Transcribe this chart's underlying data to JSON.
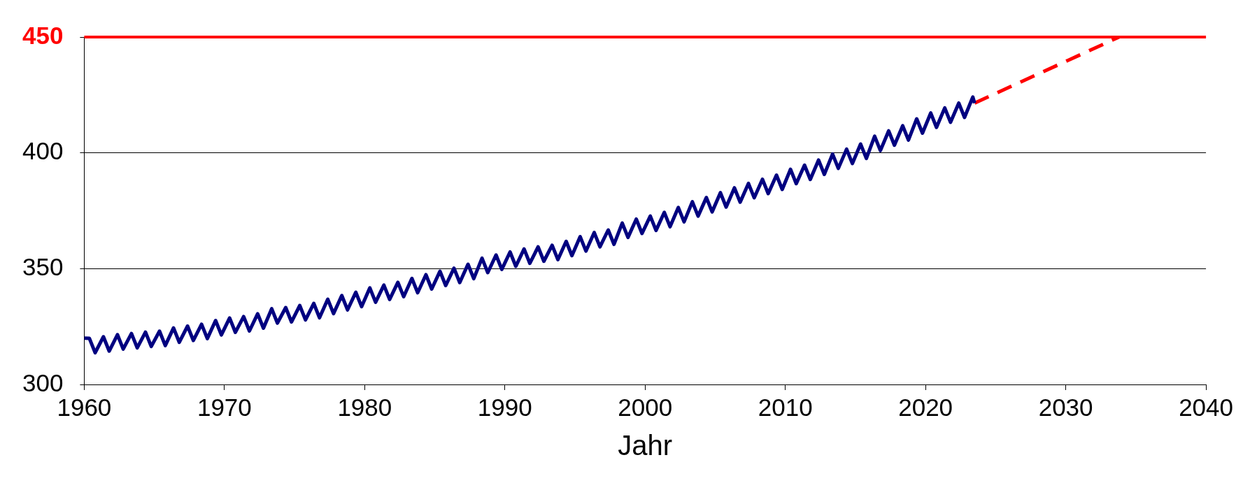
{
  "chart_data": {
    "type": "line",
    "xlabel": "Jahr",
    "xlim": [
      1960,
      2040
    ],
    "xticks": [
      1960,
      1970,
      1980,
      1990,
      2000,
      2010,
      2020,
      2030,
      2040
    ],
    "ylim": [
      300,
      450
    ],
    "yticks": [
      300,
      350,
      400,
      450
    ],
    "grid": "y",
    "legend": false,
    "marker": "none",
    "ref_lines": [
      {
        "axis": "y",
        "value": 450,
        "color": "#ff0000"
      }
    ],
    "series": [
      {
        "color": "#000080",
        "line_style": "solid",
        "x": [
          1960,
          1960.37,
          1960.78,
          1961.37,
          1961.78,
          1962.37,
          1962.78,
          1963.37,
          1963.78,
          1964.37,
          1964.78,
          1965.37,
          1965.78,
          1966.37,
          1966.78,
          1967.37,
          1967.78,
          1968.37,
          1968.78,
          1969.37,
          1969.78,
          1970.37,
          1970.78,
          1971.37,
          1971.78,
          1972.37,
          1972.78,
          1973.37,
          1973.78,
          1974.37,
          1974.78,
          1975.37,
          1975.78,
          1976.37,
          1976.78,
          1977.37,
          1977.78,
          1978.37,
          1978.78,
          1979.37,
          1979.78,
          1980.37,
          1980.78,
          1981.37,
          1981.78,
          1982.37,
          1982.78,
          1983.37,
          1983.78,
          1984.37,
          1984.78,
          1985.37,
          1985.78,
          1986.37,
          1986.78,
          1987.37,
          1987.78,
          1988.37,
          1988.78,
          1989.37,
          1989.78,
          1990.37,
          1990.78,
          1991.37,
          1991.78,
          1992.37,
          1992.78,
          1993.37,
          1993.78,
          1994.37,
          1994.78,
          1995.37,
          1995.78,
          1996.37,
          1996.78,
          1997.37,
          1997.78,
          1998.37,
          1998.78,
          1999.37,
          1999.78,
          2000.37,
          2000.78,
          2001.37,
          2001.78,
          2002.37,
          2002.78,
          2003.37,
          2003.78,
          2004.37,
          2004.78,
          2005.37,
          2005.78,
          2006.37,
          2006.78,
          2007.37,
          2007.78,
          2008.37,
          2008.78,
          2009.37,
          2009.78,
          2010.37,
          2010.78,
          2011.37,
          2011.78,
          2012.37,
          2012.78,
          2013.37,
          2013.78,
          2014.37,
          2014.78,
          2015.37,
          2015.78,
          2016.37,
          2016.78,
          2017.37,
          2017.78,
          2018.37,
          2018.78,
          2019.37,
          2019.78,
          2020.37,
          2020.78,
          2021.37,
          2021.78,
          2022.37,
          2022.78,
          2023.37,
          2023.5
        ],
        "values": [
          320,
          319.9,
          313.7,
          320.6,
          314.4,
          321.5,
          315.3,
          322,
          315.8,
          322.6,
          316.4,
          323,
          316.8,
          324.4,
          318.2,
          325.2,
          319,
          326,
          319.8,
          327.6,
          321.4,
          328.7,
          322.5,
          329.3,
          323.1,
          330.5,
          324.3,
          332.7,
          326.5,
          333.2,
          327,
          334.1,
          327.9,
          335,
          328.8,
          336.8,
          330.6,
          338.4,
          332.2,
          339.8,
          333.6,
          341.7,
          335.5,
          342.9,
          336.7,
          344.1,
          337.9,
          345.8,
          339.6,
          347.4,
          341.2,
          348.9,
          342.7,
          350.2,
          344,
          351.9,
          345.7,
          354.5,
          348.3,
          355.9,
          349.7,
          357.2,
          351,
          358.5,
          352.3,
          359.4,
          353.2,
          360.1,
          353.9,
          361.8,
          355.6,
          363.8,
          357.6,
          365.6,
          359.4,
          366.7,
          360.5,
          369.7,
          363.5,
          371.4,
          365.2,
          372.7,
          366.5,
          374.3,
          368.1,
          376.4,
          370.2,
          378.9,
          372.7,
          380.7,
          374.5,
          382.8,
          376.6,
          384.9,
          378.7,
          386.8,
          380.6,
          388.6,
          382.4,
          390.4,
          384.2,
          392.9,
          386.7,
          394.7,
          388.5,
          396.9,
          390.7,
          399.5,
          393.3,
          401.6,
          395.4,
          403.8,
          397.6,
          407.2,
          401,
          409.5,
          403.3,
          411.7,
          405.5,
          414.7,
          408.5,
          417.2,
          411,
          419.4,
          413.2,
          421.5,
          415.3,
          424.1,
          421.5
        ]
      },
      {
        "color": "#ff0000",
        "line_style": "dashed",
        "x": [
          2023.5,
          2033.8
        ],
        "values": [
          421.5,
          450
        ]
      }
    ]
  }
}
